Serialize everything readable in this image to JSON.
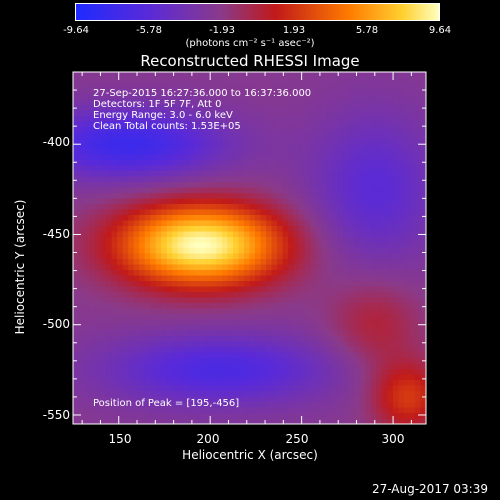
{
  "colorbar": {
    "ticks": [
      "-9.64",
      "-5.78",
      "-1.93",
      "1.93",
      "5.78",
      "9.64"
    ],
    "unit": "(photons cm⁻² s⁻¹ asec⁻²)"
  },
  "plot": {
    "title": "Reconstructed RHESSI Image",
    "xlabel": "Heliocentric X (arcsec)",
    "ylabel": "Heliocentric Y (arcsec)",
    "xticks": [
      "150",
      "200",
      "250",
      "300"
    ],
    "yticks": [
      "-400",
      "-450",
      "-500",
      "-550"
    ],
    "info": {
      "time_range": "27-Sep-2015 16:27:36.000 to 16:37:36.000",
      "detectors": "Detectors: 1F 5F 7F, Att 0",
      "energy": "Energy Range: 3.0 - 6.0 keV",
      "clean": "Clean    Total counts: 1.53E+05"
    },
    "peak": "Position of Peak = [195,-456]"
  },
  "chart_data": {
    "type": "heatmap",
    "title": "Reconstructed RHESSI Image",
    "xlabel": "Heliocentric X (arcsec)",
    "ylabel": "Heliocentric Y (arcsec)",
    "xlim": [
      125,
      318
    ],
    "ylim": [
      -555,
      -360
    ],
    "color_range": [
      -9.64,
      9.64
    ],
    "colorbar_unit": "(photons cm⁻² s⁻¹ asec⁻²)",
    "peak": [
      195,
      -456
    ],
    "blobs": [
      {
        "x": 195,
        "y": -456,
        "amplitude": 9.64,
        "sx": 32,
        "sy": 16
      },
      {
        "x": 155,
        "y": -400,
        "amplitude": -5.5,
        "sx": 38,
        "sy": 14
      },
      {
        "x": 205,
        "y": -525,
        "amplitude": -4.5,
        "sx": 45,
        "sy": 14
      },
      {
        "x": 290,
        "y": -425,
        "amplitude": -3.5,
        "sx": 25,
        "sy": 30
      },
      {
        "x": 308,
        "y": -540,
        "amplitude": 4.5,
        "sx": 14,
        "sy": 14
      },
      {
        "x": 290,
        "y": -500,
        "amplitude": 2.5,
        "sx": 18,
        "sy": 18
      }
    ]
  },
  "footer": {
    "timestamp": "27-Aug-2017 03:39"
  }
}
